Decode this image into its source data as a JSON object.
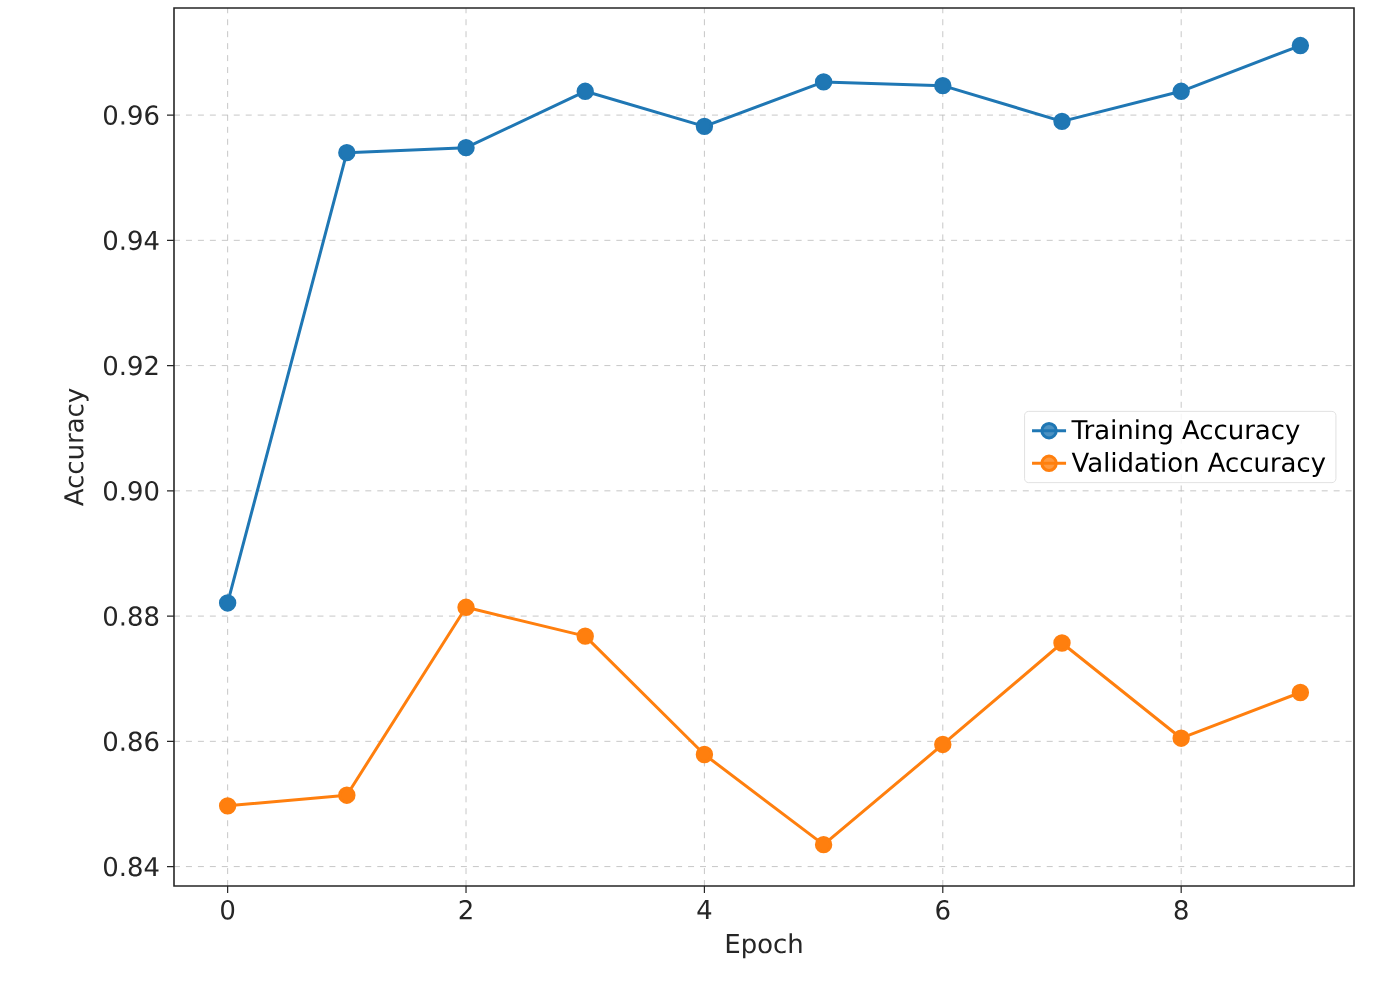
{
  "chart_data": {
    "type": "line",
    "xlabel": "Epoch",
    "ylabel": "Accuracy",
    "x": [
      0,
      1,
      2,
      3,
      4,
      5,
      6,
      7,
      8,
      9
    ],
    "series": [
      {
        "name": "Training Accuracy",
        "color": "#1f77b4",
        "values": [
          0.8821,
          0.954,
          0.9548,
          0.9638,
          0.9582,
          0.9653,
          0.9647,
          0.959,
          0.9638,
          0.9711
        ]
      },
      {
        "name": "Validation Accuracy",
        "color": "#ff7f0e",
        "values": [
          0.8497,
          0.8514,
          0.8814,
          0.8768,
          0.8579,
          0.8435,
          0.8595,
          0.8757,
          0.8605,
          0.8678
        ]
      }
    ],
    "xlim": [
      -0.45,
      9.45
    ],
    "ylim": [
      0.8369,
      0.9771
    ],
    "xticks": [
      0,
      2,
      4,
      6,
      8
    ],
    "yticks": [
      {
        "value": 0.84,
        "label": "0.84"
      },
      {
        "value": 0.86,
        "label": "0.86"
      },
      {
        "value": 0.88,
        "label": "0.88"
      },
      {
        "value": 0.9,
        "label": "0.90"
      },
      {
        "value": 0.92,
        "label": "0.92"
      },
      {
        "value": 0.94,
        "label": "0.94"
      },
      {
        "value": 0.96,
        "label": "0.96"
      }
    ],
    "grid": true,
    "legend": "right",
    "marker": "circle",
    "line_style": "solid"
  }
}
